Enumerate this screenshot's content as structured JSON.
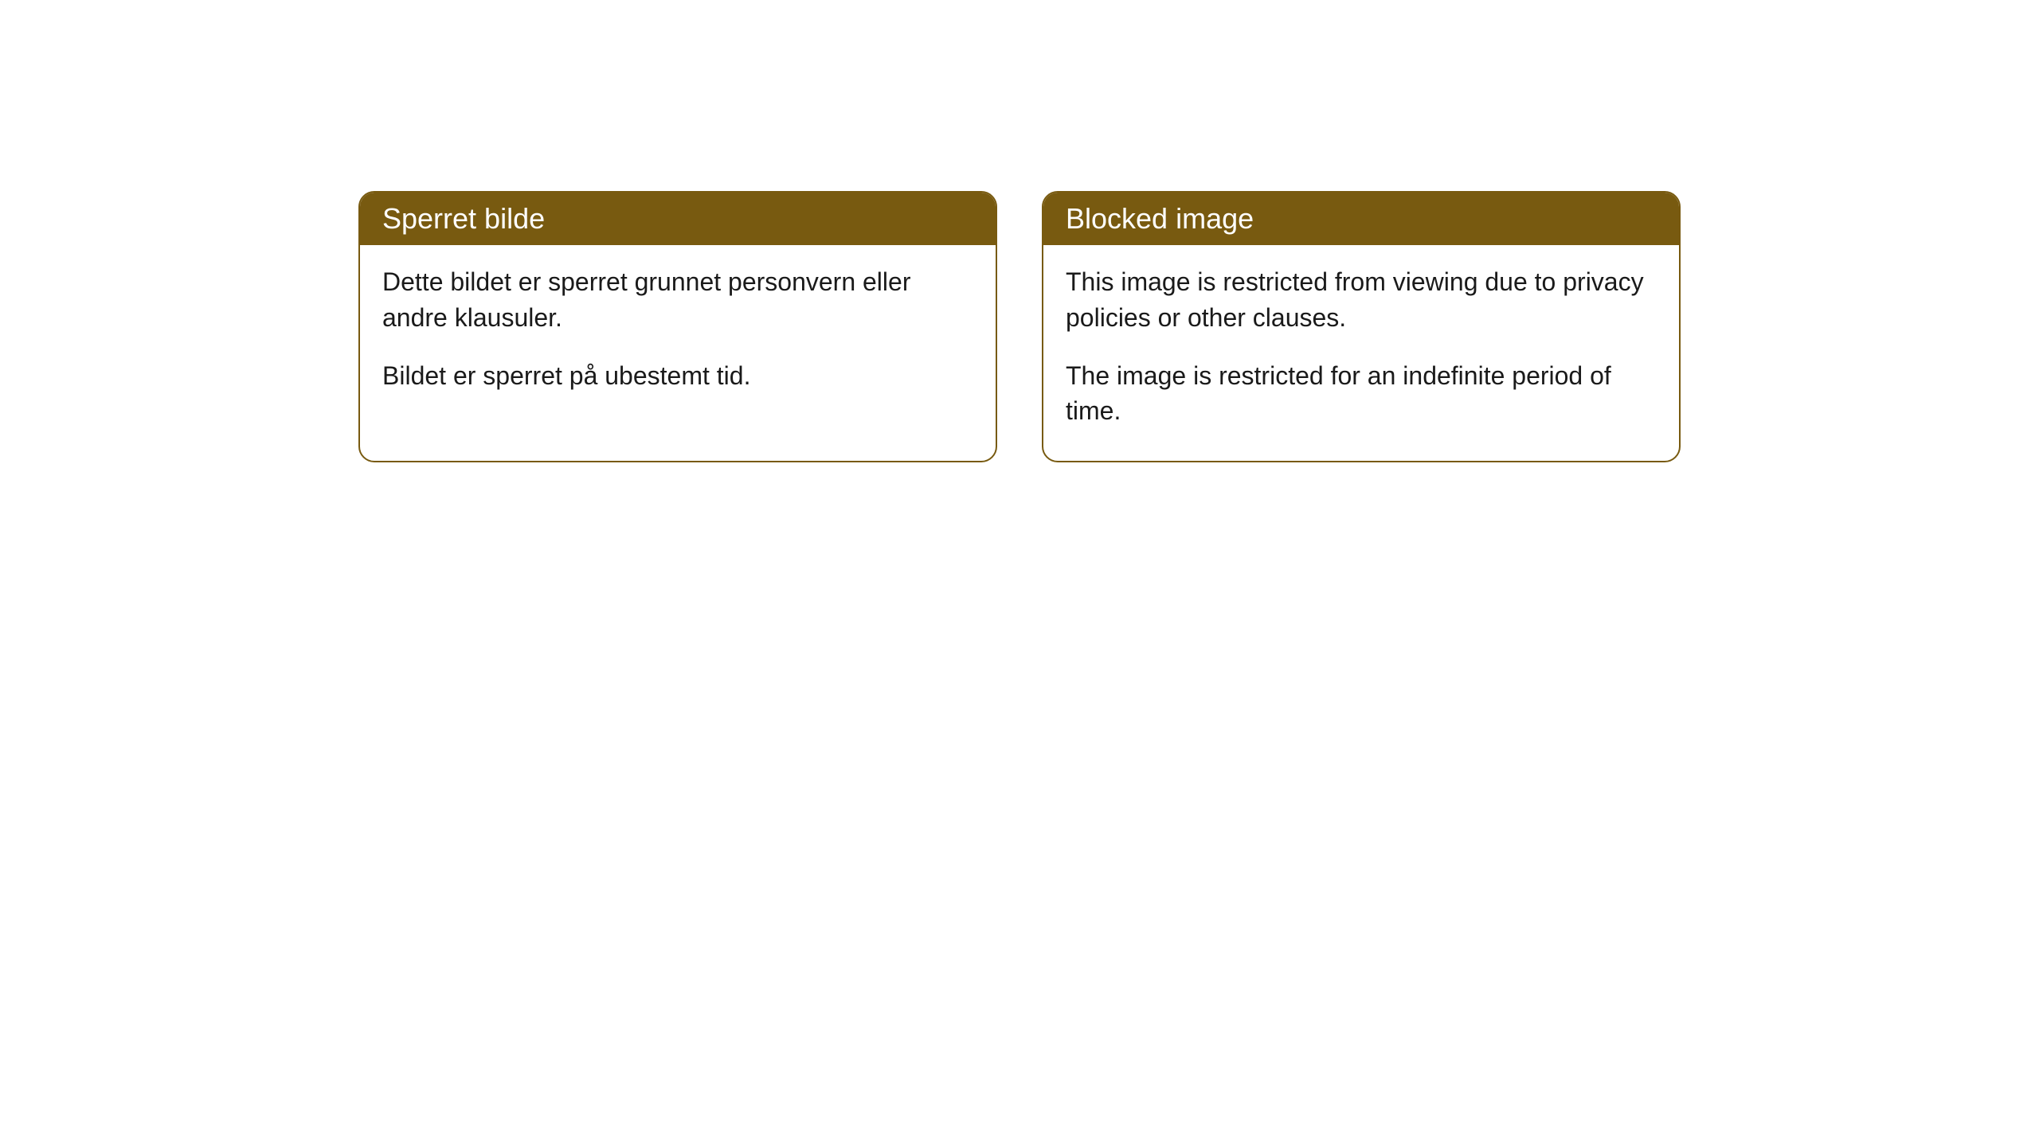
{
  "cards": [
    {
      "title": "Sperret bilde",
      "paragraph1": "Dette bildet er sperret grunnet personvern eller andre klausuler.",
      "paragraph2": "Bildet er sperret på ubestemt tid."
    },
    {
      "title": "Blocked image",
      "paragraph1": "This image is restricted from viewing due to privacy policies or other clauses.",
      "paragraph2": "The image is restricted for an indefinite period of time."
    }
  ],
  "styling": {
    "header_bg_color": "#785a10",
    "header_text_color": "#ffffff",
    "border_color": "#785a10",
    "body_bg_color": "#ffffff",
    "body_text_color": "#1a1a1a",
    "border_radius": 20,
    "header_fontsize": 36,
    "body_fontsize": 32
  }
}
